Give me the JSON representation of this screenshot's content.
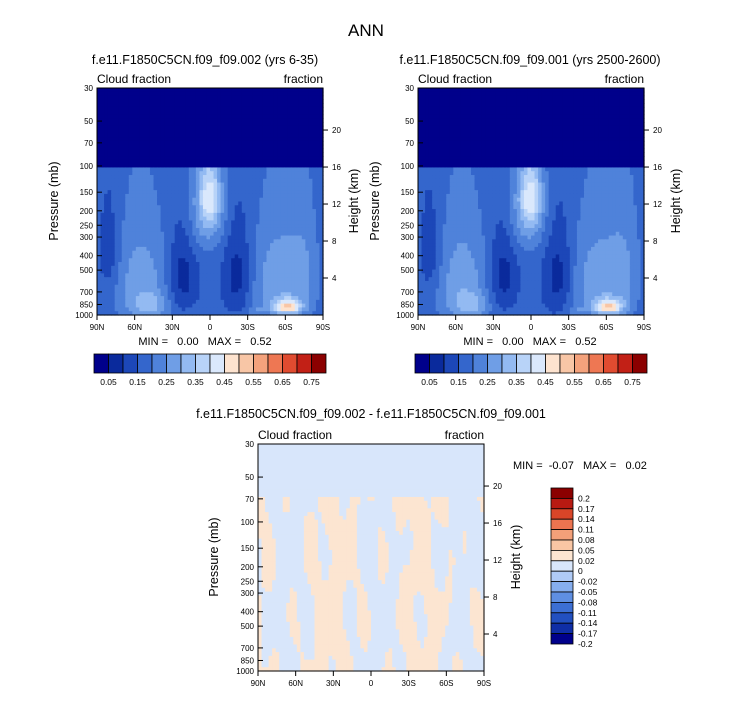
{
  "page_title": "ANN",
  "colors": {
    "abs": [
      "#00008b",
      "#0a2a9c",
      "#1c47b8",
      "#3466cc",
      "#4f82da",
      "#6f9ee6",
      "#93baf2",
      "#b8d3f8",
      "#dae8fc",
      "#fde3cf",
      "#f8c6a6",
      "#f4a27c",
      "#ee7753",
      "#e04b30",
      "#c22016",
      "#8b0000"
    ],
    "diff": [
      "#00008b",
      "#0f2ea6",
      "#2250c0",
      "#3c6fd4",
      "#5f8fe2",
      "#86aeee",
      "#b0cbf6",
      "#d8e6fb",
      "#fce5d1",
      "#f9c6a4",
      "#f3a079",
      "#ec7450",
      "#d94528",
      "#b81a12",
      "#8b0000"
    ],
    "missing": "#ffffff"
  },
  "chart_data": [
    {
      "type": "heatmap",
      "title": "f.e11.F1850C5CN.f09_f09.002 (yrs 6-35)",
      "left_label": "Cloud fraction",
      "right_label": "fraction",
      "xlabel": "",
      "ylabel": "Pressure (mb)",
      "ylabel_right": "Height (km)",
      "x_ticks": [
        "90N",
        "60N",
        "30N",
        "0",
        "30S",
        "60S",
        "90S"
      ],
      "x_values": [
        90,
        60,
        30,
        0,
        -30,
        -60,
        -90
      ],
      "y_ticks": [
        "30",
        "50",
        "70",
        "100",
        "150",
        "200",
        "250",
        "300",
        "400",
        "500",
        "700",
        "850",
        "1000"
      ],
      "y_values": [
        30,
        50,
        70,
        100,
        150,
        200,
        250,
        300,
        400,
        500,
        700,
        850,
        1000
      ],
      "height_ticks": [
        "20",
        "16",
        "12",
        "8",
        "4"
      ],
      "height_values": [
        20,
        16,
        12,
        8,
        4
      ],
      "ylim": [
        30,
        1000
      ],
      "stats": "MIN =   0.00   MAX =   0.52",
      "min": 0.0,
      "max": 0.52,
      "colorbar_labels": [
        "0.05",
        "0.15",
        "0.25",
        "0.35",
        "0.45",
        "0.55",
        "0.65",
        "0.75"
      ],
      "levels": [
        0.05,
        0.1,
        0.15,
        0.2,
        0.25,
        0.3,
        0.35,
        0.4,
        0.45,
        0.5,
        0.55,
        0.6,
        0.65,
        0.7,
        0.75
      ],
      "variant": 0
    },
    {
      "type": "heatmap",
      "title": "f.e11.F1850C5CN.f09_f09.001 (yrs 2500-2600)",
      "left_label": "Cloud fraction",
      "right_label": "fraction",
      "xlabel": "",
      "ylabel": "Pressure (mb)",
      "ylabel_right": "Height (km)",
      "x_ticks": [
        "90N",
        "60N",
        "30N",
        "0",
        "30S",
        "60S",
        "90S"
      ],
      "x_values": [
        90,
        60,
        30,
        0,
        -30,
        -60,
        -90
      ],
      "y_ticks": [
        "30",
        "50",
        "70",
        "100",
        "150",
        "200",
        "250",
        "300",
        "400",
        "500",
        "700",
        "850",
        "1000"
      ],
      "y_values": [
        30,
        50,
        70,
        100,
        150,
        200,
        250,
        300,
        400,
        500,
        700,
        850,
        1000
      ],
      "height_ticks": [
        "20",
        "16",
        "12",
        "8",
        "4"
      ],
      "height_values": [
        20,
        16,
        12,
        8,
        4
      ],
      "ylim": [
        30,
        1000
      ],
      "stats": "MIN =   0.00   MAX =   0.52",
      "min": 0.0,
      "max": 0.52,
      "colorbar_labels": [
        "0.05",
        "0.15",
        "0.25",
        "0.35",
        "0.45",
        "0.55",
        "0.65",
        "0.75"
      ],
      "levels": [
        0.05,
        0.1,
        0.15,
        0.2,
        0.25,
        0.3,
        0.35,
        0.4,
        0.45,
        0.5,
        0.55,
        0.6,
        0.65,
        0.7,
        0.75
      ],
      "variant": 1
    },
    {
      "type": "heatmap",
      "title": "f.e11.F1850C5CN.f09_f09.002 - f.e11.F1850C5CN.f09_f09.001",
      "left_label": "Cloud fraction",
      "right_label": "fraction",
      "xlabel": "",
      "ylabel": "Pressure (mb)",
      "ylabel_right": "Height (km)",
      "x_ticks": [
        "90N",
        "60N",
        "30N",
        "0",
        "30S",
        "60S",
        "90S"
      ],
      "x_values": [
        90,
        60,
        30,
        0,
        -30,
        -60,
        -90
      ],
      "y_ticks": [
        "30",
        "50",
        "70",
        "100",
        "150",
        "200",
        "250",
        "300",
        "400",
        "500",
        "700",
        "850",
        "1000"
      ],
      "y_values": [
        30,
        50,
        70,
        100,
        150,
        200,
        250,
        300,
        400,
        500,
        700,
        850,
        1000
      ],
      "height_ticks": [
        "20",
        "16",
        "12",
        "8",
        "4"
      ],
      "height_values": [
        20,
        16,
        12,
        8,
        4
      ],
      "ylim": [
        30,
        1000
      ],
      "stats": "MIN =  -0.07   MAX =   0.02",
      "min": -0.07,
      "max": 0.02,
      "colorbar_labels": [
        "0.2",
        "0.17",
        "0.14",
        "0.11",
        "0.08",
        "0.05",
        "0.02",
        "0",
        "-0.02",
        "-0.05",
        "-0.08",
        "-0.11",
        "-0.14",
        "-0.17",
        "-0.2"
      ],
      "levels": [
        -0.2,
        -0.17,
        -0.14,
        -0.11,
        -0.08,
        -0.05,
        -0.02,
        0,
        0.02,
        0.05,
        0.08,
        0.11,
        0.14,
        0.17,
        0.2
      ]
    }
  ]
}
